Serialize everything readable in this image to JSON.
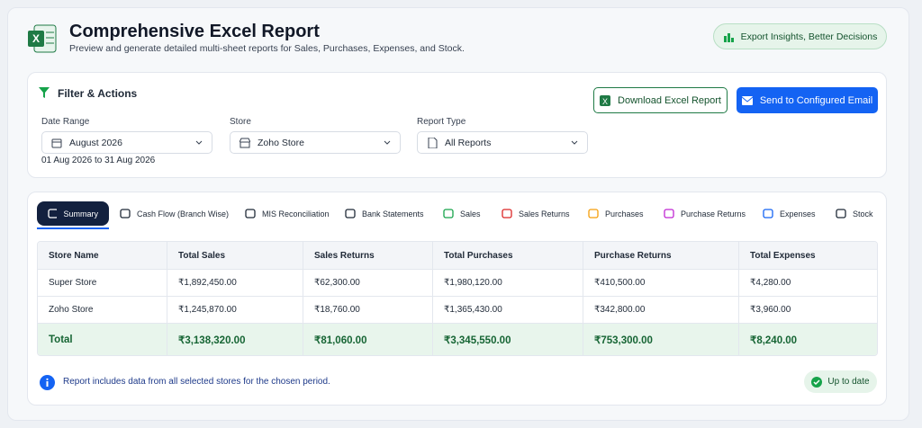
{
  "header": {
    "title": "Comprehensive Excel Report",
    "subtitle": "Preview and generate detailed multi-sheet reports for Sales, Purchases, Expenses, and Stock.",
    "badge": "Export Insights, Better Decisions"
  },
  "filters": {
    "title": "Filter & Actions",
    "download_button": "Download Excel Report",
    "email_button": "Send to Configured Email",
    "fields": [
      {
        "label": "Date Range",
        "value": "August 2026"
      },
      {
        "label": "Store",
        "value": "Zoho Store"
      },
      {
        "label": "Report Type",
        "value": "All Reports"
      }
    ],
    "date_hint": "01 Aug 2026 to 31 Aug 2026"
  },
  "tabs": [
    "Summary",
    "Cash Flow (Branch Wise)",
    "MIS Reconciliation",
    "Bank Statements",
    "Sales",
    "Sales Returns",
    "Purchases",
    "Purchase Returns",
    "Expenses",
    "Stock"
  ],
  "table": {
    "columns": [
      "Store Name",
      "Total Sales",
      "Sales Returns",
      "Total Purchases",
      "Purchase Returns",
      "Total Expenses"
    ],
    "rows": [
      [
        "Super Store",
        "₹1,892,450.00",
        "₹62,300.00",
        "₹1,980,120.00",
        "₹410,500.00",
        "₹4,280.00"
      ],
      [
        "Zoho Store",
        "₹1,245,870.00",
        "₹18,760.00",
        "₹1,365,430.00",
        "₹342,800.00",
        "₹3,960.00"
      ]
    ],
    "total": [
      "Total",
      "₹3,138,320.00",
      "₹81,060.00",
      "₹3,345,550.00",
      "₹753,300.00",
      "₹8,240.00"
    ]
  },
  "footer": {
    "note": "Report includes data from all selected stores for the chosen period.",
    "status": "Up to date"
  }
}
